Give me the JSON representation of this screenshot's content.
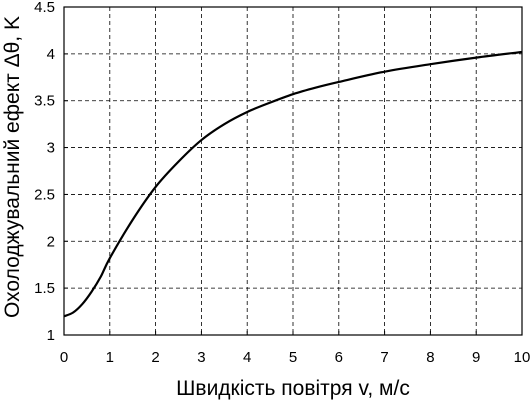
{
  "chart_data": {
    "type": "line",
    "xlabel": "Швидкість повітря  v, м/с",
    "ylabel": "Охолоджувальний ефект Δθ, K",
    "xlim": [
      0,
      10
    ],
    "ylim": [
      1,
      4.5
    ],
    "xticks": [
      0,
      1,
      2,
      3,
      4,
      5,
      6,
      7,
      8,
      9,
      10
    ],
    "yticks": [
      1,
      1.5,
      2,
      2.5,
      3,
      3.5,
      4,
      4.5
    ],
    "grid": true,
    "legend": "none",
    "series": [
      {
        "color": "#000000",
        "x": [
          0,
          0.2,
          0.4,
          0.6,
          0.8,
          1.0,
          1.5,
          2.0,
          2.5,
          3.0,
          3.5,
          4.0,
          4.5,
          5.0,
          5.5,
          6.0,
          7.0,
          8.0,
          9.0,
          10.0
        ],
        "y": [
          1.2,
          1.24,
          1.33,
          1.46,
          1.62,
          1.82,
          2.23,
          2.58,
          2.85,
          3.08,
          3.25,
          3.38,
          3.48,
          3.57,
          3.64,
          3.7,
          3.81,
          3.89,
          3.96,
          4.02
        ]
      }
    ]
  }
}
